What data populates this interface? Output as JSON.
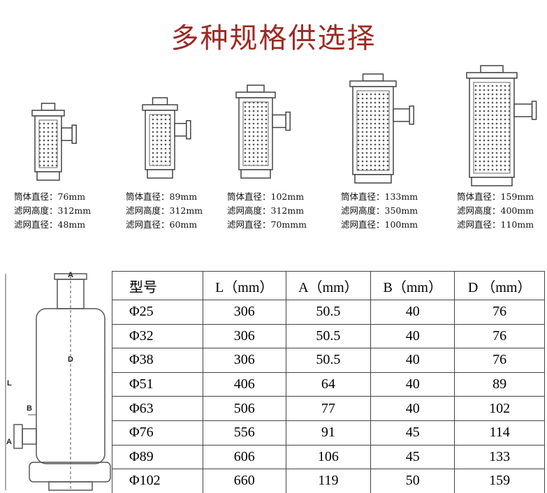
{
  "header": {
    "title": "多种规格供选择"
  },
  "products": [
    {
      "lines": [
        "筒体直径：76mm",
        "滤网高度：312mm",
        "滤网直径：48mm"
      ]
    },
    {
      "lines": [
        "筒体直径：89mm",
        "滤网高度：312mm",
        "滤网直径：60mm"
      ]
    },
    {
      "lines": [
        "筒体直径：102mm",
        "滤网高度：312mm",
        "滤网直径：70mmm"
      ]
    },
    {
      "lines": [
        "筒体直径：133mm",
        "滤网高度：350mm",
        "滤网直径：100mm"
      ]
    },
    {
      "lines": [
        "筒体直径：159mm",
        "滤网高度：400mm",
        "滤网直径：110mm"
      ]
    }
  ],
  "diagram": {
    "labels": [
      "A",
      "D",
      "L",
      "B",
      "A"
    ]
  },
  "table": {
    "header": [
      "型号",
      "L（mm）",
      "A（mm）",
      "B（mm）",
      "D （mm）"
    ],
    "rows": [
      [
        "Φ25",
        "306",
        "50.5",
        "40",
        "76"
      ],
      [
        "Φ32",
        "306",
        "50.5",
        "40",
        "76"
      ],
      [
        "Φ38",
        "306",
        "50.5",
        "40",
        "76"
      ],
      [
        "Φ51",
        "406",
        "64",
        "40",
        "89"
      ],
      [
        "Φ63",
        "506",
        "77",
        "40",
        "102"
      ],
      [
        "Φ76",
        "556",
        "91",
        "45",
        "114"
      ],
      [
        "Φ89",
        "606",
        "106",
        "45",
        "133"
      ],
      [
        "Φ102",
        "660",
        "119",
        "50",
        "159"
      ]
    ]
  }
}
